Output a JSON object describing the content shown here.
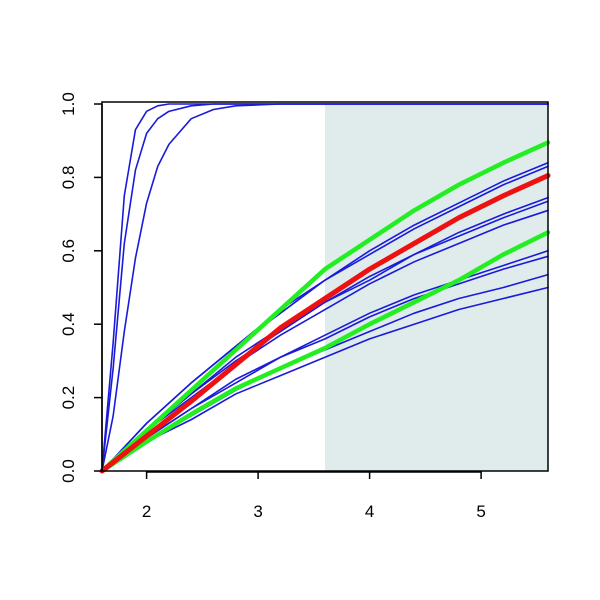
{
  "chart_data": {
    "type": "line",
    "xlim": [
      1.6,
      5.6
    ],
    "ylim": [
      0,
      1
    ],
    "xticks": [
      2,
      3,
      4,
      5
    ],
    "yticks": [
      {
        "value": 0,
        "label": "0.0"
      },
      0.2,
      0.4,
      0.6,
      0.8,
      {
        "value": 1,
        "label": "1.0"
      }
    ],
    "shaded_xlim": [
      3.6,
      5.6
    ],
    "shade_color": "#dfeceb",
    "series": [
      {
        "color": "#1a1adb",
        "width": 1.6,
        "x": [
          1.6,
          1.7,
          1.8,
          1.9,
          2.0,
          2.1,
          2.2,
          2.4,
          2.6,
          2.8,
          3.2,
          5.6
        ],
        "values": [
          0,
          0.35,
          0.75,
          0.93,
          0.98,
          0.995,
          1,
          1,
          1,
          1,
          1,
          1
        ]
      },
      {
        "color": "#1a1adb",
        "width": 1.6,
        "x": [
          1.6,
          1.7,
          1.8,
          1.9,
          2.0,
          2.1,
          2.2,
          2.4,
          2.6,
          2.8,
          3.2,
          5.6
        ],
        "values": [
          0,
          0.28,
          0.62,
          0.82,
          0.92,
          0.96,
          0.98,
          0.995,
          1,
          1,
          1,
          1
        ]
      },
      {
        "color": "#1a1adb",
        "width": 1.6,
        "x": [
          1.6,
          1.7,
          1.8,
          1.9,
          2.0,
          2.1,
          2.2,
          2.4,
          2.6,
          2.8,
          3.2,
          5.6
        ],
        "values": [
          0,
          0.15,
          0.38,
          0.58,
          0.73,
          0.83,
          0.89,
          0.96,
          0.985,
          0.995,
          1,
          1
        ]
      },
      {
        "color": "#1a1adb",
        "width": 1.6,
        "x": [
          1.6,
          2.0,
          2.4,
          2.8,
          3.2,
          3.6,
          4.0,
          4.4,
          4.8,
          5.2,
          5.6
        ],
        "values": [
          0,
          0.13,
          0.24,
          0.34,
          0.44,
          0.52,
          0.6,
          0.67,
          0.73,
          0.79,
          0.84
        ]
      },
      {
        "color": "#1a1adb",
        "width": 1.6,
        "x": [
          1.6,
          2.0,
          2.4,
          2.8,
          3.2,
          3.6,
          4.0,
          4.4,
          4.8,
          5.2,
          5.6
        ],
        "values": [
          0,
          0.13,
          0.24,
          0.34,
          0.43,
          0.52,
          0.59,
          0.66,
          0.72,
          0.78,
          0.83
        ]
      },
      {
        "color": "#1a1adb",
        "width": 1.6,
        "x": [
          1.6,
          2.0,
          2.4,
          2.8,
          3.2,
          3.6,
          4.0,
          4.4,
          4.8,
          5.2,
          5.6
        ],
        "values": [
          0,
          0.11,
          0.21,
          0.31,
          0.39,
          0.46,
          0.53,
          0.59,
          0.65,
          0.7,
          0.745
        ]
      },
      {
        "color": "#1a1adb",
        "width": 1.6,
        "x": [
          1.6,
          2.0,
          2.4,
          2.8,
          3.2,
          3.6,
          4.0,
          4.4,
          4.8,
          5.2,
          5.6
        ],
        "values": [
          0,
          0.11,
          0.21,
          0.3,
          0.38,
          0.46,
          0.52,
          0.59,
          0.64,
          0.69,
          0.735
        ]
      },
      {
        "color": "#1a1adb",
        "width": 1.6,
        "x": [
          1.6,
          2.0,
          2.4,
          2.8,
          3.2,
          3.6,
          4.0,
          4.4,
          4.8,
          5.2,
          5.6
        ],
        "values": [
          0,
          0.11,
          0.2,
          0.29,
          0.37,
          0.44,
          0.51,
          0.57,
          0.62,
          0.67,
          0.71
        ]
      },
      {
        "color": "#1a1adb",
        "width": 1.6,
        "x": [
          1.6,
          2.0,
          2.4,
          2.8,
          3.2,
          3.6,
          4.0,
          4.4,
          4.8,
          5.2,
          5.6
        ],
        "values": [
          0,
          0.09,
          0.17,
          0.25,
          0.31,
          0.37,
          0.43,
          0.48,
          0.52,
          0.56,
          0.6
        ]
      },
      {
        "color": "#1a1adb",
        "width": 1.6,
        "x": [
          1.6,
          2.0,
          2.4,
          2.8,
          3.2,
          3.6,
          4.0,
          4.4,
          4.8,
          5.2,
          5.6
        ],
        "values": [
          0,
          0.09,
          0.17,
          0.24,
          0.31,
          0.36,
          0.42,
          0.47,
          0.51,
          0.55,
          0.585
        ]
      },
      {
        "color": "#1a1adb",
        "width": 1.6,
        "x": [
          1.6,
          2.0,
          2.4,
          2.8,
          3.2,
          3.6,
          4.0,
          4.4,
          4.8,
          5.2,
          5.6
        ],
        "values": [
          0,
          0.08,
          0.15,
          0.22,
          0.28,
          0.33,
          0.38,
          0.43,
          0.47,
          0.5,
          0.535
        ]
      },
      {
        "color": "#1a1adb",
        "width": 1.6,
        "x": [
          1.6,
          2.0,
          2.4,
          2.8,
          3.2,
          3.6,
          4.0,
          4.4,
          4.8,
          5.2,
          5.6
        ],
        "values": [
          0,
          0.08,
          0.14,
          0.21,
          0.26,
          0.31,
          0.36,
          0.4,
          0.44,
          0.47,
          0.5
        ]
      },
      {
        "color": "#22ee22",
        "width": 4.5,
        "x": [
          1.6,
          2.0,
          2.4,
          2.8,
          3.2,
          3.6,
          4.0,
          4.4,
          4.8,
          5.2,
          5.6
        ],
        "values": [
          0,
          0.08,
          0.155,
          0.225,
          0.28,
          0.335,
          0.4,
          0.46,
          0.52,
          0.59,
          0.65
        ]
      },
      {
        "color": "#22ee22",
        "width": 4.5,
        "x": [
          1.6,
          2.0,
          2.4,
          2.8,
          3.2,
          3.6,
          4.0,
          4.4,
          4.8,
          5.2,
          5.6
        ],
        "values": [
          0,
          0.11,
          0.22,
          0.33,
          0.44,
          0.55,
          0.63,
          0.71,
          0.78,
          0.84,
          0.895
        ]
      },
      {
        "color": "#ee1111",
        "width": 5,
        "x": [
          1.6,
          2.0,
          2.4,
          2.8,
          3.2,
          3.6,
          4.0,
          4.4,
          4.8,
          5.2,
          5.6
        ],
        "values": [
          0,
          0.095,
          0.19,
          0.29,
          0.39,
          0.47,
          0.55,
          0.62,
          0.69,
          0.75,
          0.805
        ]
      }
    ]
  }
}
